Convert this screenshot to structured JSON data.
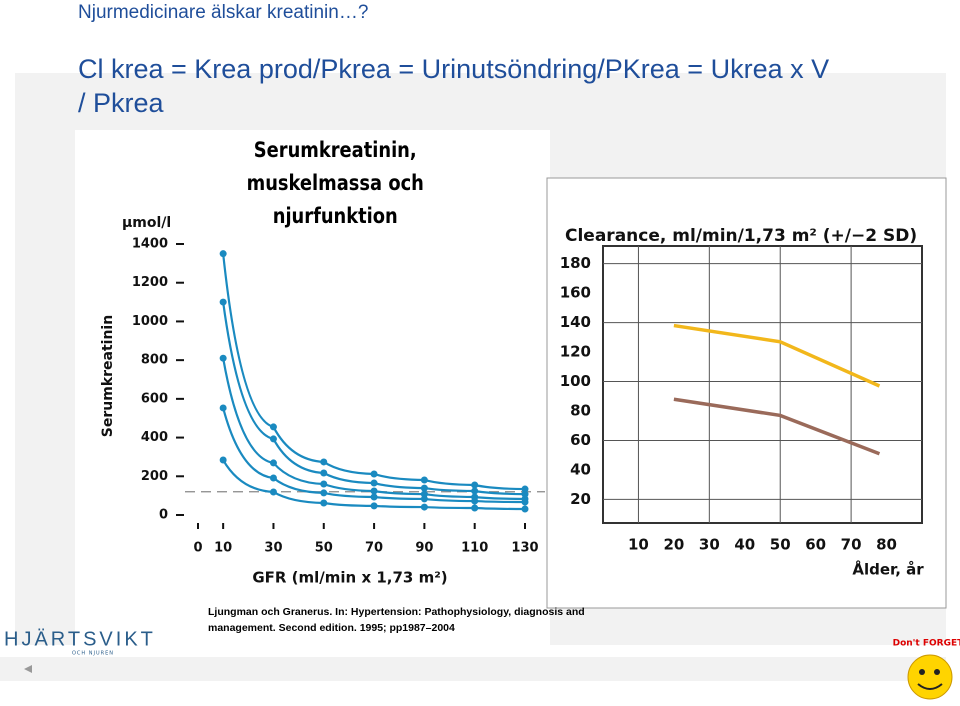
{
  "header": {
    "title": "Njurmedicinare älskar kreatinin…?",
    "formula": "Cl krea = Krea prod/Pkrea = Urinutsöndring/PKrea = Ukrea x V / Pkrea"
  },
  "chart_data": [
    {
      "type": "line",
      "title": "Serumkreatinin, muskelmassa och njurfunktion",
      "y_unit": "µmol/l",
      "ylabel": "Serumkreatinin",
      "xlabel": "GFR (ml/min x 1,73 m²)",
      "markers": true,
      "x": [
        10,
        30,
        50,
        70,
        90,
        110,
        130
      ],
      "series": [
        {
          "color": "#1a8ac0",
          "values": [
            1350,
            455,
            274,
            212,
            181,
            155,
            134
          ]
        },
        {
          "color": "#1a8ac0",
          "values": [
            1100,
            393,
            217,
            165,
            139,
            124,
            108
          ]
        },
        {
          "color": "#1a8ac0",
          "values": [
            810,
            269,
            160,
            124,
            108,
            93,
            83
          ]
        },
        {
          "color": "#1a8ac0",
          "values": [
            553,
            191,
            114,
            93,
            83,
            72,
            67
          ]
        },
        {
          "color": "#1a8ac0",
          "values": [
            284,
            119,
            62,
            47,
            41,
            36,
            31
          ]
        }
      ],
      "reference_line": 120,
      "xlim": [
        0,
        130
      ],
      "xticks": [
        0,
        10,
        30,
        50,
        70,
        90,
        110,
        130
      ],
      "ylim": [
        0,
        1400
      ],
      "yticks": [
        0,
        200,
        400,
        600,
        800,
        1000,
        1200,
        1400
      ],
      "source": "Ljungman och Granerus. In: Hypertension: Pathophysiology, diagnosis and management. Second edition. 1995; pp1987–2004"
    },
    {
      "type": "line",
      "title": "Clearance, ml/min/1,73 m² (+/−2 SD)",
      "xlabel": "Ålder, år",
      "markers": false,
      "grid": true,
      "x": [
        20,
        50,
        78
      ],
      "series": [
        {
          "color": "#f2b71b",
          "values": [
            138,
            127,
            97
          ]
        },
        {
          "color": "#9a6a5a",
          "values": [
            88,
            77,
            51
          ]
        }
      ],
      "xlim": [
        0,
        90
      ],
      "xticks": [
        10,
        20,
        30,
        40,
        50,
        60,
        70,
        80
      ],
      "ylim": [
        4,
        192
      ],
      "yticks": [
        20,
        40,
        60,
        80,
        100,
        120,
        140,
        160,
        180
      ]
    }
  ],
  "logo": {
    "name": "HJÄRTSVIKT",
    "sub": "OCH NJUREN"
  },
  "badge": "Don't FORGET!"
}
